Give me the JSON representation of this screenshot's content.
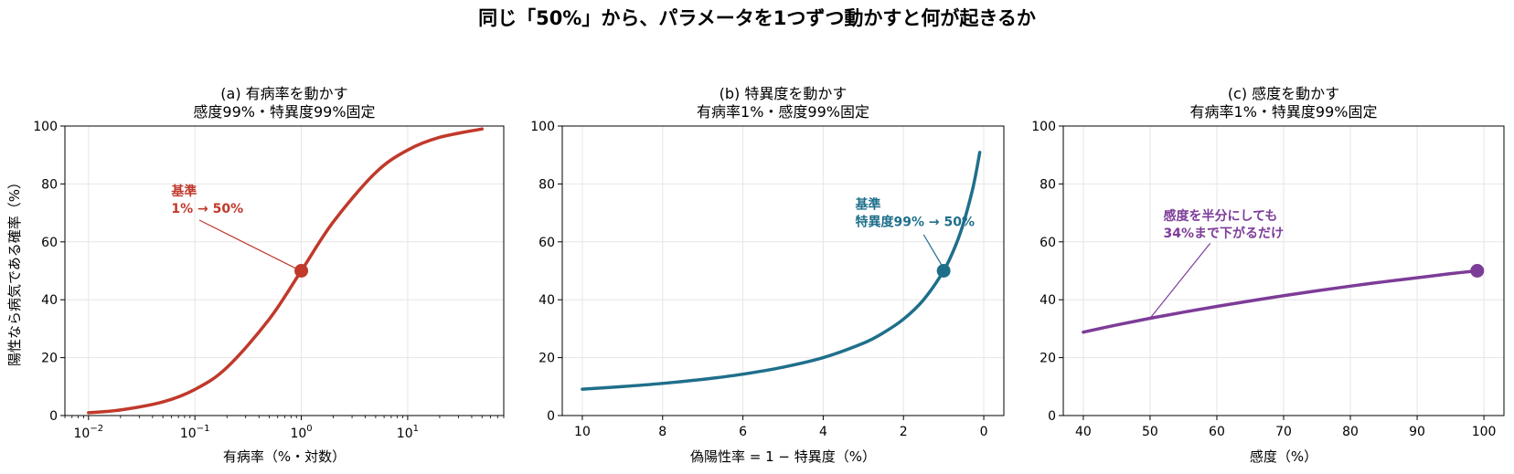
{
  "figure": {
    "title": "同じ「50%」から、パラメータを1つずつ動かすと何が起きるか"
  },
  "chart_data": [
    {
      "type": "line",
      "title_line1": "(a) 有病率を動かす",
      "title_line2": "感度99%・特異度99%固定",
      "xlabel": "有病率（%・対数）",
      "ylabel": "陽性なら病気である確率（%）",
      "xscale": "log",
      "xlim": [
        0.006,
        80
      ],
      "ylim": [
        0,
        100
      ],
      "xticks": [
        0.01,
        0.1,
        1,
        10
      ],
      "xtick_labels": [
        [
          "10",
          "−2"
        ],
        [
          "10",
          "−1"
        ],
        [
          "10",
          "0"
        ],
        [
          "10",
          "1"
        ]
      ],
      "yticks": [
        0,
        20,
        40,
        60,
        80,
        100
      ],
      "ytick_labels": [
        "0",
        "20",
        "40",
        "60",
        "80",
        "100"
      ],
      "grid": true,
      "color": "#c0392b",
      "series": [
        {
          "x": [
            0.01,
            0.02,
            0.05,
            0.1,
            0.2,
            0.5,
            1,
            2,
            5,
            10,
            20,
            50
          ],
          "y": [
            0.98,
            1.94,
            4.72,
            9.02,
            16.6,
            33.3,
            50.0,
            66.9,
            83.9,
            91.7,
            96.1,
            99.0
          ]
        }
      ],
      "marker": {
        "x": 1,
        "y": 50
      },
      "annotation": {
        "lines": [
          "基準",
          "1% → 50%"
        ],
        "text_x": 0.06,
        "text_y": 76,
        "arrow_from": [
          0.11,
          67.5
        ],
        "arrow_to": [
          0.95,
          50.3
        ]
      }
    },
    {
      "type": "line",
      "title_line1": "(b) 特異度を動かす",
      "title_line2": "有病率1%・感度99%固定",
      "xlabel": "偽陽性率 = 1 − 特異度（%）",
      "ylabel": "",
      "xscale": "linear",
      "xreversed": true,
      "xlim": [
        10.5,
        -0.5
      ],
      "ylim": [
        0,
        100
      ],
      "xticks": [
        10,
        8,
        6,
        4,
        2,
        0
      ],
      "xtick_labels": [
        "10",
        "8",
        "6",
        "4",
        "2",
        "0"
      ],
      "yticks": [
        0,
        20,
        40,
        60,
        80,
        100
      ],
      "ytick_labels": [
        "0",
        "20",
        "40",
        "60",
        "80",
        "100"
      ],
      "grid": true,
      "color": "#1f6f8b",
      "series": [
        {
          "x": [
            10,
            9,
            8,
            7,
            6,
            5,
            4,
            3,
            2.5,
            2,
            1.5,
            1,
            0.7,
            0.5,
            0.3,
            0.2,
            0.1
          ],
          "y": [
            9.1,
            10.0,
            11.1,
            12.5,
            14.3,
            16.7,
            20.0,
            25.0,
            28.6,
            33.3,
            40.0,
            50.0,
            58.8,
            66.7,
            76.9,
            83.3,
            90.9
          ]
        }
      ],
      "marker": {
        "x": 1,
        "y": 50
      },
      "annotation": {
        "lines": [
          "基準",
          "特異度99% → 50%"
        ],
        "text_x": 3.2,
        "text_y": 71.5,
        "arrow_from": [
          1.5,
          62.5
        ],
        "arrow_to": [
          1.05,
          52
        ]
      }
    },
    {
      "type": "line",
      "title_line1": "(c) 感度を動かす",
      "title_line2": "有病率1%・特異度99%固定",
      "xlabel": "感度（%）",
      "ylabel": "",
      "xscale": "linear",
      "xlim": [
        37,
        103
      ],
      "ylim": [
        0,
        100
      ],
      "xticks": [
        40,
        50,
        60,
        70,
        80,
        90,
        100
      ],
      "xtick_labels": [
        "40",
        "50",
        "60",
        "70",
        "80",
        "90",
        "100"
      ],
      "yticks": [
        0,
        20,
        40,
        60,
        80,
        100
      ],
      "ytick_labels": [
        "0",
        "20",
        "40",
        "60",
        "80",
        "100"
      ],
      "grid": true,
      "color": "#7d3c98",
      "series": [
        {
          "x": [
            40,
            45,
            50,
            55,
            60,
            65,
            70,
            75,
            80,
            85,
            90,
            95,
            99
          ],
          "y": [
            28.8,
            31.3,
            33.6,
            35.7,
            37.7,
            39.6,
            41.4,
            43.1,
            44.7,
            46.2,
            47.6,
            49.0,
            50.0
          ]
        }
      ],
      "marker": {
        "x": 99,
        "y": 50
      },
      "annotation": {
        "lines": [
          "感度を半分にしても",
          "34%まで下がるだけ"
        ],
        "text_x": 52,
        "text_y": 67.5,
        "arrow_from": [
          59,
          59.5
        ],
        "arrow_to": [
          50,
          33.6
        ]
      }
    }
  ]
}
